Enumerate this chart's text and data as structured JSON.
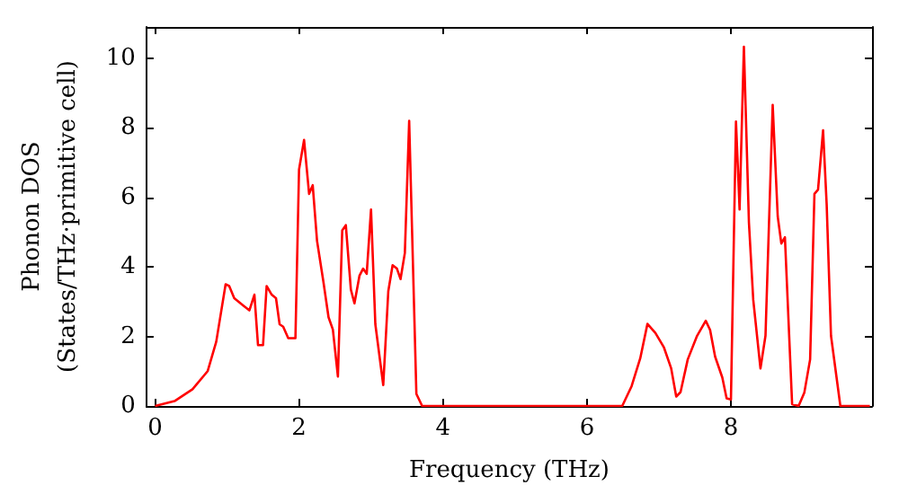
{
  "chart_data": {
    "type": "line",
    "xlabel": "Frequency (THz)",
    "ylabel": "Phonon DOS\n(States/THz·primitive cell)",
    "xlim": [
      -0.12,
      9.96
    ],
    "ylim": [
      0,
      10.9
    ],
    "xticks": [
      0,
      2,
      4,
      6,
      8
    ],
    "yticks": [
      0,
      2,
      4,
      6,
      8,
      10
    ],
    "series": [
      {
        "color": "#ff0000",
        "x": [
          0,
          0.27,
          0.52,
          0.73,
          0.85,
          0.98,
          1.03,
          1.1,
          1.23,
          1.31,
          1.38,
          1.43,
          1.5,
          1.55,
          1.62,
          1.68,
          1.73,
          1.78,
          1.85,
          1.95,
          2.0,
          2.07,
          2.14,
          2.19,
          2.25,
          2.34,
          2.41,
          2.47,
          2.54,
          2.6,
          2.65,
          2.72,
          2.77,
          2.84,
          2.89,
          2.94,
          3.0,
          3.06,
          3.17,
          3.24,
          3.3,
          3.36,
          3.41,
          3.47,
          3.53,
          3.63,
          3.71,
          6.49,
          6.62,
          6.74,
          6.84,
          6.95,
          7.07,
          7.17,
          7.24,
          7.3,
          7.4,
          7.53,
          7.65,
          7.71,
          7.78,
          7.88,
          7.94,
          8.0,
          8.07,
          8.12,
          8.18,
          8.25,
          8.31,
          8.41,
          8.48,
          8.58,
          8.65,
          8.7,
          8.75,
          8.85,
          8.94,
          9.02,
          9.1,
          9.16,
          9.21,
          9.28,
          9.33,
          9.39,
          9.52,
          9.93
        ],
        "values": [
          0,
          0.14,
          0.48,
          1.0,
          1.85,
          3.5,
          3.45,
          3.1,
          2.88,
          2.75,
          3.2,
          1.75,
          1.75,
          3.45,
          3.2,
          3.1,
          2.35,
          2.28,
          1.95,
          1.95,
          6.8,
          7.65,
          6.1,
          6.35,
          4.75,
          3.55,
          2.55,
          2.2,
          0.85,
          5.05,
          5.2,
          3.35,
          2.95,
          3.75,
          3.95,
          3.8,
          5.65,
          2.35,
          0.6,
          3.3,
          4.05,
          3.95,
          3.65,
          4.4,
          8.2,
          0.35,
          0,
          0,
          0.57,
          1.37,
          2.36,
          2.1,
          1.68,
          1.08,
          0.27,
          0.4,
          1.34,
          2.02,
          2.45,
          2.19,
          1.42,
          0.82,
          0.22,
          0.19,
          8.18,
          5.65,
          10.33,
          5.27,
          3.05,
          1.08,
          2.02,
          8.66,
          5.45,
          4.67,
          4.85,
          0.05,
          0,
          0.39,
          1.34,
          6.1,
          6.22,
          7.93,
          5.79,
          2.02,
          0,
          0
        ]
      }
    ]
  }
}
